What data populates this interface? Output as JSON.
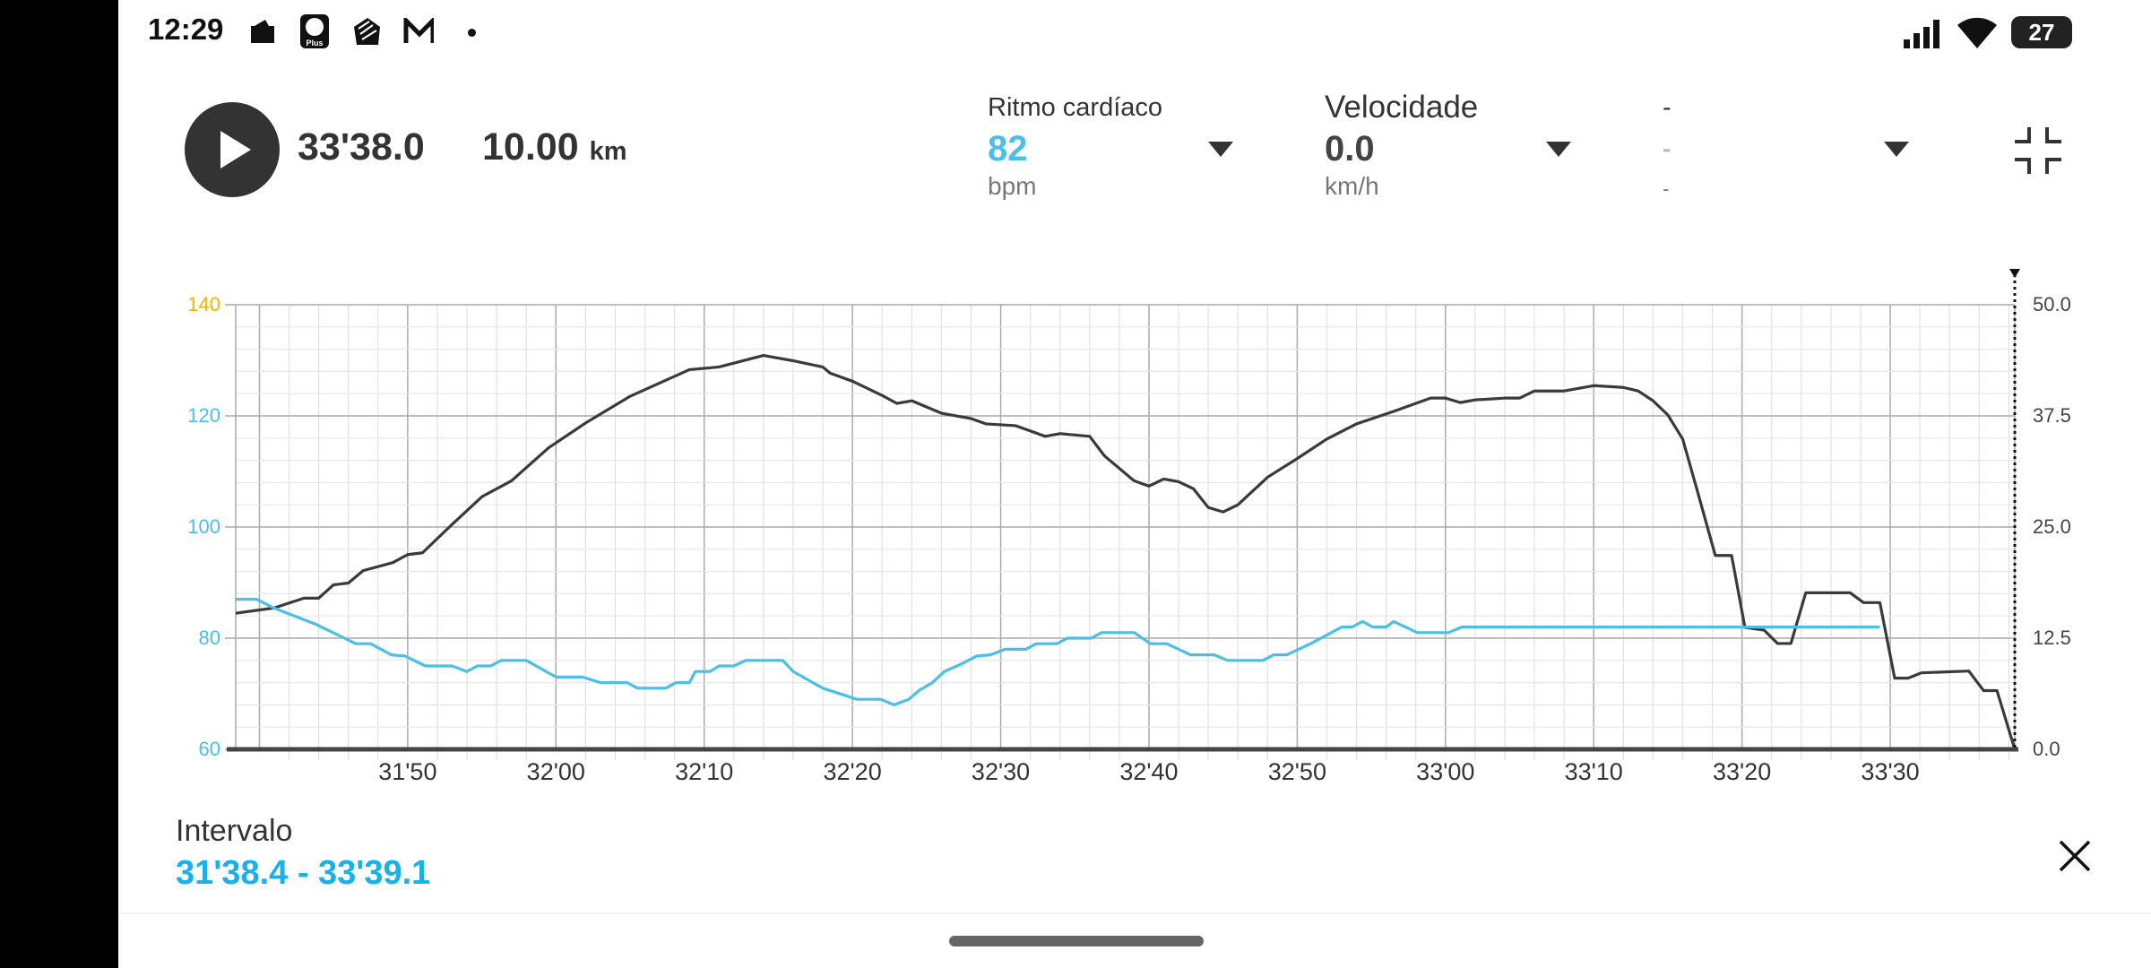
{
  "status_bar": {
    "time": "12:29",
    "notification_icons": [
      "wallet-icon",
      "lidl-plus-icon",
      "hand-app-icon",
      "gmail-icon",
      "dot-icon"
    ],
    "battery": "27",
    "lidl_logo_text": "Lidl Plus"
  },
  "header": {
    "elapsed": "33'38.0",
    "distance": "10.00",
    "distance_unit": "km"
  },
  "metrics": [
    {
      "label": "Ritmo cardíaco",
      "value": "82",
      "unit": "bpm",
      "value_color": "#4cbfe6"
    },
    {
      "label": "Velocidade",
      "value": "0.0",
      "unit": "km/h",
      "value_color": "#333333"
    },
    {
      "label": "-",
      "value": "-",
      "unit": "-",
      "value_color": "#bbbbbb"
    }
  ],
  "interval": {
    "label": "Intervalo",
    "range": "31'38.4 - 33'39.1"
  },
  "chart_data": {
    "type": "line",
    "x_range": [
      "31'38.4",
      "33'38.4"
    ],
    "x_ticks": [
      "31'50",
      "32'00",
      "32'10",
      "32'20",
      "32'30",
      "32'40",
      "32'50",
      "33'00",
      "33'10",
      "33'20",
      "33'30"
    ],
    "y_left": {
      "range": [
        60,
        140
      ],
      "ticks": [
        "60",
        "80",
        "100",
        "120",
        "140"
      ],
      "color": "#4cbfe6",
      "top_tick_color": "#f5b400"
    },
    "y_right": {
      "range": [
        0,
        50
      ],
      "ticks": [
        "0.0",
        "12.5",
        "25.0",
        "37.5",
        "50.0"
      ]
    },
    "grid": true,
    "series": [
      {
        "axis": "right",
        "color": "#3a3a3a",
        "points": [
          [
            "31'38.4",
            15.3
          ],
          [
            "31'41",
            15.9
          ],
          [
            "31'43",
            17.0
          ],
          [
            "31'44",
            17.0
          ],
          [
            "31'45",
            18.5
          ],
          [
            "31'46",
            18.7
          ],
          [
            "31'47",
            20.1
          ],
          [
            "31'49",
            21.0
          ],
          [
            "31'50",
            21.9
          ],
          [
            "31'51",
            22.1
          ],
          [
            "31'53",
            25.3
          ],
          [
            "31'55",
            28.4
          ],
          [
            "31'57",
            30.2
          ],
          [
            "31'59.5",
            33.9
          ],
          [
            "32'02",
            36.7
          ],
          [
            "32'05",
            39.7
          ],
          [
            "32'07.4",
            41.5
          ],
          [
            "32'09",
            42.7
          ],
          [
            "32'11",
            43.0
          ],
          [
            "32'14",
            44.3
          ],
          [
            "32'16",
            43.7
          ],
          [
            "32'18",
            43.0
          ],
          [
            "32'18.5",
            42.3
          ],
          [
            "32'20",
            41.4
          ],
          [
            "32'22",
            39.8
          ],
          [
            "32'23",
            38.9
          ],
          [
            "32'24",
            39.2
          ],
          [
            "32'26",
            37.8
          ],
          [
            "32'28",
            37.2
          ],
          [
            "32'29",
            36.6
          ],
          [
            "32'31",
            36.4
          ],
          [
            "32'33",
            35.2
          ],
          [
            "32'34",
            35.5
          ],
          [
            "32'36",
            35.2
          ],
          [
            "32'37",
            33.0
          ],
          [
            "32'39",
            30.2
          ],
          [
            "32'40",
            29.6
          ],
          [
            "32'41",
            30.4
          ],
          [
            "32'42",
            30.1
          ],
          [
            "32'43",
            29.3
          ],
          [
            "32'44",
            27.2
          ],
          [
            "32'45",
            26.7
          ],
          [
            "32'46",
            27.5
          ],
          [
            "32'48",
            30.6
          ],
          [
            "32'50",
            32.7
          ],
          [
            "32'52",
            34.9
          ],
          [
            "32'54",
            36.6
          ],
          [
            "32'56.5",
            38.0
          ],
          [
            "32'59",
            39.5
          ],
          [
            "33'00",
            39.5
          ],
          [
            "33'01",
            39.0
          ],
          [
            "33'02",
            39.3
          ],
          [
            "33'04",
            39.5
          ],
          [
            "33'05",
            39.5
          ],
          [
            "33'06",
            40.3
          ],
          [
            "33'08",
            40.3
          ],
          [
            "33'10",
            40.9
          ],
          [
            "33'12",
            40.7
          ],
          [
            "33'13",
            40.3
          ],
          [
            "33'14",
            39.2
          ],
          [
            "33'15",
            37.6
          ],
          [
            "33'16",
            34.9
          ],
          [
            "33'17",
            29.0
          ],
          [
            "33'18.2",
            21.8
          ],
          [
            "33'19.3",
            21.8
          ],
          [
            "33'20.2",
            13.7
          ],
          [
            "33'21.5",
            13.4
          ],
          [
            "33'22.4",
            11.9
          ],
          [
            "33'23.3",
            11.9
          ],
          [
            "33'24.3",
            17.6
          ],
          [
            "33'27.3",
            17.6
          ],
          [
            "33'28.2",
            16.5
          ],
          [
            "33'29.3",
            16.5
          ],
          [
            "33'30.3",
            8.0
          ],
          [
            "33'31.2",
            8.0
          ],
          [
            "33'32.1",
            8.6
          ],
          [
            "33'35.3",
            8.8
          ],
          [
            "33'36.3",
            6.6
          ],
          [
            "33'37.2",
            6.6
          ],
          [
            "33'38.4",
            0.0
          ]
        ]
      },
      {
        "axis": "left",
        "color": "#4cbfe6",
        "points": [
          [
            "31'38.4",
            87
          ],
          [
            "31'39.8",
            87
          ],
          [
            "31'41",
            85.4
          ],
          [
            "31'43.8",
            82.5
          ],
          [
            "31'45.2",
            80.7
          ],
          [
            "31'46.5",
            79
          ],
          [
            "31'47.5",
            79
          ],
          [
            "31'48.9",
            77
          ],
          [
            "31'49.8",
            76.8
          ],
          [
            "31'51.2",
            75
          ],
          [
            "31'53",
            75
          ],
          [
            "31'54",
            74
          ],
          [
            "31'54.7",
            75
          ],
          [
            "31'55.6",
            75
          ],
          [
            "31'56.3",
            76
          ],
          [
            "31'58",
            76
          ],
          [
            "32'00",
            73
          ],
          [
            "32'01.8",
            73
          ],
          [
            "32'03",
            72
          ],
          [
            "32'04.8",
            72
          ],
          [
            "32'05.5",
            71
          ],
          [
            "32'07.4",
            71
          ],
          [
            "32'08.1",
            72
          ],
          [
            "32'09",
            72
          ],
          [
            "32'09.4",
            74
          ],
          [
            "32'10.4",
            74
          ],
          [
            "32'11",
            75
          ],
          [
            "32'12",
            75
          ],
          [
            "32'12.8",
            76
          ],
          [
            "32'15.3",
            76
          ],
          [
            "32'16",
            74
          ],
          [
            "32'18",
            71
          ],
          [
            "32'20.3",
            69
          ],
          [
            "32'21.9",
            69
          ],
          [
            "32'22.8",
            68
          ],
          [
            "32'23.8",
            69
          ],
          [
            "32'24.5",
            70.6
          ],
          [
            "32'25.4",
            72
          ],
          [
            "32'26.2",
            74
          ],
          [
            "32'27.3",
            75.3
          ],
          [
            "32'28.4",
            76.8
          ],
          [
            "32'29.3",
            77
          ],
          [
            "32'30.3",
            78
          ],
          [
            "32'31.7",
            78
          ],
          [
            "32'32.4",
            79
          ],
          [
            "32'33.8",
            79
          ],
          [
            "32'34.5",
            80
          ],
          [
            "32'36.1",
            80
          ],
          [
            "32'36.8",
            81
          ],
          [
            "32'39",
            81
          ],
          [
            "32'40.1",
            79
          ],
          [
            "32'41.2",
            79
          ],
          [
            "32'42.8",
            77
          ],
          [
            "32'44.4",
            77
          ],
          [
            "32'45.3",
            76
          ],
          [
            "32'47.7",
            76
          ],
          [
            "32'48.4",
            77
          ],
          [
            "32'49.3",
            77
          ],
          [
            "32'50.9",
            79
          ],
          [
            "32'52.3",
            81
          ],
          [
            "32'53",
            82
          ],
          [
            "32'53.7",
            82
          ],
          [
            "32'54.4",
            83
          ],
          [
            "32'55.1",
            82
          ],
          [
            "32'56",
            82
          ],
          [
            "32'56.5",
            83
          ],
          [
            "32'57.3",
            82
          ],
          [
            "32'58.1",
            81
          ],
          [
            "33'00.2",
            81
          ],
          [
            "33'01.1",
            82
          ],
          [
            "33'29.3",
            82
          ]
        ]
      }
    ]
  }
}
